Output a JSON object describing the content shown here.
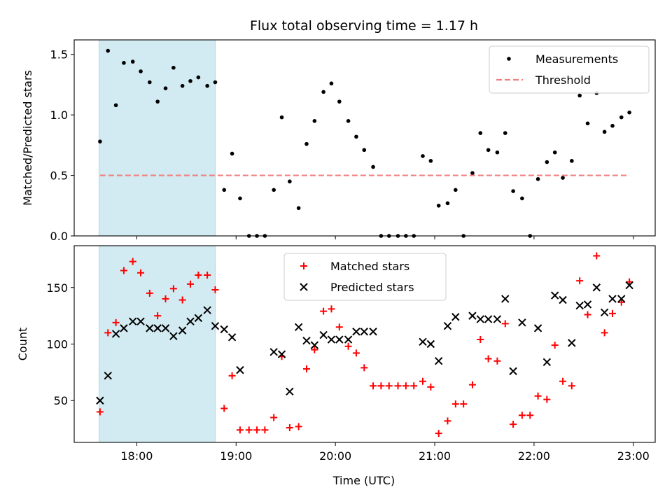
{
  "chart_data": {
    "title": "Flux total observing time = 1.17 h",
    "xlabel": "Time (UTC)",
    "x_unit": "hours UTC",
    "xlim": [
      17.37,
      23.22
    ],
    "xticks": [
      {
        "value": 18,
        "label": "18:00"
      },
      {
        "value": 19,
        "label": "19:00"
      },
      {
        "value": 20,
        "label": "20:00"
      },
      {
        "value": 21,
        "label": "21:00"
      },
      {
        "value": 22,
        "label": "22:00"
      },
      {
        "value": 23,
        "label": "23:00"
      }
    ],
    "shaded_span": {
      "x_start": 17.62,
      "x_end": 18.79,
      "color": "#add8e6"
    },
    "panels": [
      {
        "type": "scatter",
        "ylabel": "Matched/Predicted stars",
        "ylim": [
          0,
          1.62
        ],
        "yticks": [
          {
            "value": 0,
            "label": "0.0"
          },
          {
            "value": 0.5,
            "label": "0.5"
          },
          {
            "value": 1.0,
            "label": "1.0"
          },
          {
            "value": 1.5,
            "label": "1.5"
          }
        ],
        "legend_position": "top-right",
        "series": [
          {
            "name": "Measurements",
            "marker": "dot",
            "color": "#000000",
            "x": [
              17.63,
              17.71,
              17.79,
              17.87,
              17.96,
              18.04,
              18.13,
              18.21,
              18.29,
              18.37,
              18.46,
              18.54,
              18.62,
              18.71,
              18.79,
              18.88,
              18.96,
              19.04,
              19.13,
              19.21,
              19.29,
              19.38,
              19.46,
              19.54,
              19.63,
              19.71,
              19.79,
              19.88,
              19.96,
              20.04,
              20.13,
              20.21,
              20.29,
              20.38,
              20.46,
              20.54,
              20.63,
              20.71,
              20.79,
              20.88,
              20.96,
              21.04,
              21.13,
              21.21,
              21.29,
              21.38,
              21.46,
              21.54,
              21.63,
              21.71,
              21.79,
              21.88,
              21.96,
              22.04,
              22.13,
              22.21,
              22.29,
              22.38,
              22.46,
              22.54,
              22.63,
              22.71,
              22.79,
              22.88,
              22.96
            ],
            "y": [
              0.78,
              1.53,
              1.08,
              1.43,
              1.44,
              1.36,
              1.27,
              1.11,
              1.22,
              1.39,
              1.24,
              1.28,
              1.31,
              1.24,
              1.27,
              0.38,
              0.68,
              0.31,
              0,
              0,
              0,
              0.38,
              0.98,
              0.45,
              0.23,
              0.76,
              0.95,
              1.19,
              1.26,
              1.11,
              0.95,
              0.82,
              0.71,
              0.57,
              0,
              0,
              0,
              0,
              0,
              0.66,
              0.62,
              0.25,
              0.27,
              0.38,
              0,
              0.52,
              0.85,
              0.71,
              0.69,
              0.85,
              0.37,
              0.31,
              0,
              0.47,
              0.61,
              0.69,
              0.48,
              0.62,
              1.16,
              0.93,
              1.18,
              0.86,
              0.91,
              0.98,
              1.02
            ]
          },
          {
            "name": "Threshold",
            "marker": "dashed-line",
            "color": "#f08080",
            "x": [
              17.63,
              22.96
            ],
            "y": [
              0.5,
              0.5
            ]
          }
        ]
      },
      {
        "type": "scatter",
        "ylabel": "Count",
        "ylim": [
          13,
          187
        ],
        "yticks": [
          {
            "value": 50,
            "label": "50"
          },
          {
            "value": 100,
            "label": "100"
          },
          {
            "value": 150,
            "label": "150"
          }
        ],
        "legend_position": "top-center",
        "series": [
          {
            "name": "Matched stars",
            "marker": "plus",
            "color": "#ff0000",
            "x": [
              17.63,
              17.71,
              17.79,
              17.87,
              17.96,
              18.04,
              18.13,
              18.21,
              18.29,
              18.37,
              18.46,
              18.54,
              18.62,
              18.71,
              18.79,
              18.88,
              18.96,
              19.04,
              19.13,
              19.21,
              19.29,
              19.38,
              19.46,
              19.54,
              19.63,
              19.71,
              19.79,
              19.88,
              19.96,
              20.04,
              20.13,
              20.21,
              20.29,
              20.38,
              20.46,
              20.54,
              20.63,
              20.71,
              20.79,
              20.88,
              20.96,
              21.04,
              21.13,
              21.21,
              21.29,
              21.38,
              21.46,
              21.54,
              21.63,
              21.71,
              21.79,
              21.88,
              21.96,
              22.04,
              22.13,
              22.21,
              22.29,
              22.38,
              22.46,
              22.54,
              22.63,
              22.71,
              22.79,
              22.88,
              22.96
            ],
            "y": [
              40,
              110,
              119,
              165,
              173,
              163,
              145,
              125,
              140,
              149,
              139,
              153,
              161,
              161,
              148,
              43,
              72,
              24,
              24,
              24,
              24,
              35,
              89,
              26,
              27,
              78,
              95,
              129,
              131,
              115,
              98,
              92,
              79,
              63,
              63,
              63,
              63,
              63,
              63,
              67,
              62,
              21,
              32,
              47,
              47,
              64,
              104,
              87,
              85,
              118,
              29,
              37,
              37,
              54,
              51,
              99,
              67,
              63,
              156,
              126,
              178,
              110,
              127,
              137,
              155
            ]
          },
          {
            "name": "Predicted stars",
            "marker": "x",
            "color": "#000000",
            "x": [
              17.63,
              17.71,
              17.79,
              17.87,
              17.96,
              18.04,
              18.13,
              18.21,
              18.29,
              18.37,
              18.46,
              18.54,
              18.62,
              18.71,
              18.79,
              18.88,
              18.96,
              19.04,
              19.38,
              19.46,
              19.54,
              19.63,
              19.71,
              19.79,
              19.88,
              19.96,
              20.04,
              20.13,
              20.21,
              20.29,
              20.38,
              20.88,
              20.96,
              21.04,
              21.13,
              21.21,
              21.38,
              21.46,
              21.54,
              21.63,
              21.71,
              21.79,
              21.88,
              22.04,
              22.13,
              22.21,
              22.29,
              22.38,
              22.46,
              22.54,
              22.63,
              22.71,
              22.79,
              22.88,
              22.96
            ],
            "y": [
              50,
              72,
              109,
              114,
              120,
              120,
              114,
              114,
              114,
              107,
              112,
              120,
              123,
              130,
              116,
              113,
              106,
              77,
              93,
              91,
              58,
              115,
              103,
              99,
              108,
              104,
              104,
              104,
              111,
              111,
              111,
              102,
              100,
              85,
              116,
              124,
              125,
              122,
              122,
              122,
              140,
              76,
              119,
              114,
              84,
              143,
              139,
              101,
              134,
              135,
              150,
              128,
              140,
              140,
              152
            ]
          }
        ]
      }
    ]
  }
}
